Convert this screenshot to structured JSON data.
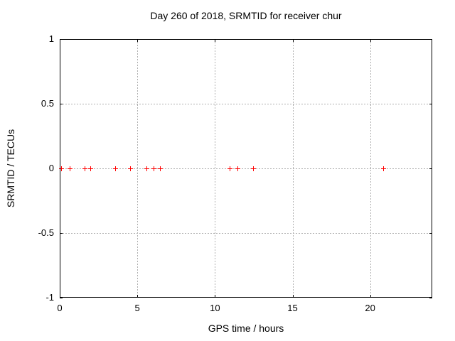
{
  "chart_data": {
    "type": "scatter",
    "title": "Day 260 of 2018, SRMTID for receiver chur",
    "xlabel": "GPS time / hours",
    "ylabel": "SRMTID / TECUs",
    "xlim": [
      0,
      24
    ],
    "ylim": [
      -1,
      1
    ],
    "grid": true,
    "legend": "none",
    "grid_color": "#b0b0b0",
    "marker": "plus",
    "marker_color": "#ff0000",
    "x_axis": {
      "label": "GPS time / hours",
      "range": [
        0,
        24
      ],
      "ticks": [
        0,
        5,
        10,
        15,
        20
      ],
      "tick_labels": [
        "0",
        "5",
        "10",
        "15",
        "20"
      ]
    },
    "y_axis": {
      "label": "SRMTID / TECUs",
      "range": [
        -1,
        1
      ],
      "ticks": [
        1,
        0.5,
        0,
        -0.5,
        -1
      ],
      "tick_labels": [
        "1",
        "0.5",
        "0",
        "-0.5",
        "-1"
      ]
    },
    "series": [
      {
        "name": "SRMTID",
        "x": [
          0.12,
          0.65,
          1.62,
          2.0,
          3.59,
          4.55,
          5.59,
          6.08,
          6.5,
          10.96,
          11.46,
          12.46,
          20.85
        ],
        "y": [
          0,
          0,
          0,
          0,
          0,
          0,
          0,
          0,
          0,
          0,
          0,
          0,
          0
        ]
      }
    ]
  }
}
